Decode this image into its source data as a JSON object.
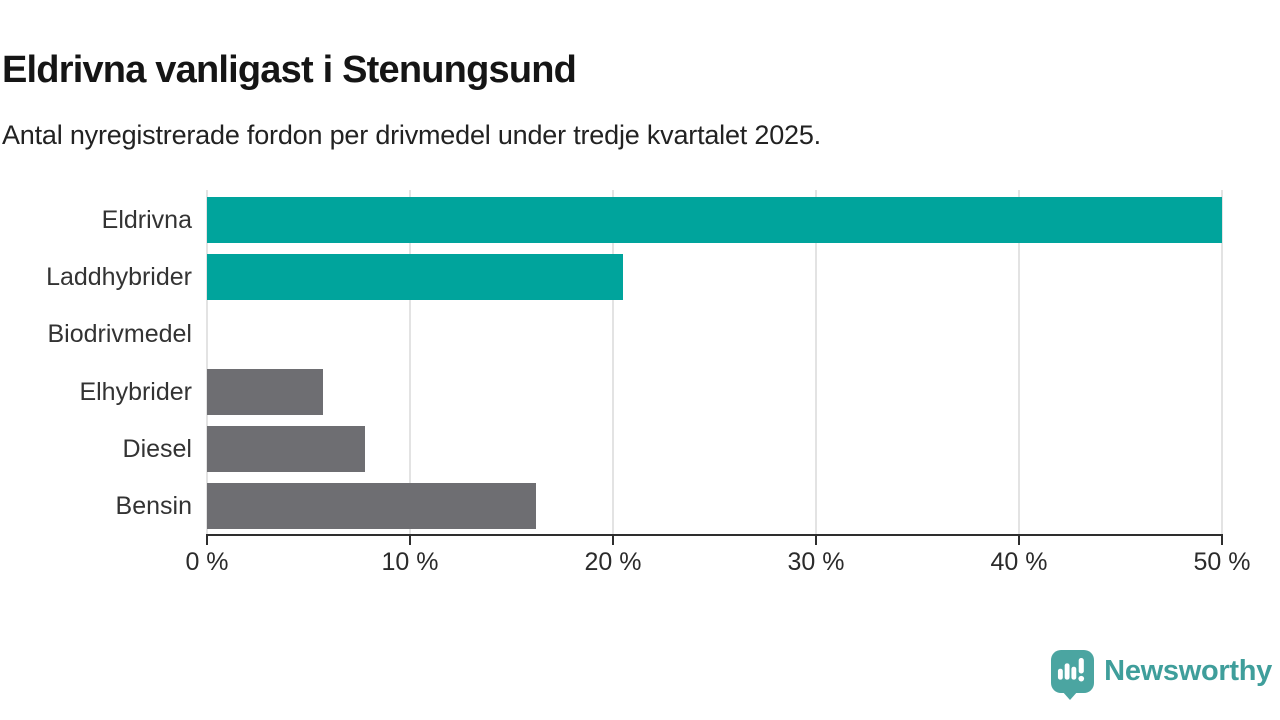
{
  "header": {
    "title": "Eldrivna vanligast i Stenungsund",
    "subtitle": "Antal nyregistrerade fordon per drivmedel under tredje kvartalet 2025."
  },
  "chart_data": {
    "type": "bar",
    "orientation": "horizontal",
    "title": "Eldrivna vanligast i Stenungsund",
    "subtitle": "Antal nyregistrerade fordon per drivmedel under tredje kvartalet 2025.",
    "categories": [
      "Eldrivna",
      "Laddhybrider",
      "Biodrivmedel",
      "Elhybrider",
      "Diesel",
      "Bensin"
    ],
    "values": [
      50.0,
      20.5,
      0,
      5.7,
      7.8,
      16.2
    ],
    "unit": "%",
    "xlabel": "",
    "ylabel": "",
    "xlim": [
      0,
      50
    ],
    "x_ticks": [
      0,
      10,
      20,
      30,
      40,
      50
    ],
    "x_tick_labels": [
      "0 %",
      "10 %",
      "20 %",
      "30 %",
      "40 %",
      "50 %"
    ],
    "grid": true,
    "legend": "none",
    "bar_colors": [
      "#00a49c",
      "#00a49c",
      "#00a49c",
      "#6e6e72",
      "#6e6e72",
      "#6e6e72"
    ],
    "colors": {
      "highlight": "#00a49c",
      "default": "#6e6e72",
      "gridline": "#e3e3e3",
      "axis": "#2e2e2e"
    }
  },
  "branding": {
    "logo_text": "Newsworthy",
    "logo_text_color": "#3f9e9b",
    "logo_pin_color": "#4ba5a1",
    "logo_icon": "newsworthy-pin-barchart-icon"
  }
}
